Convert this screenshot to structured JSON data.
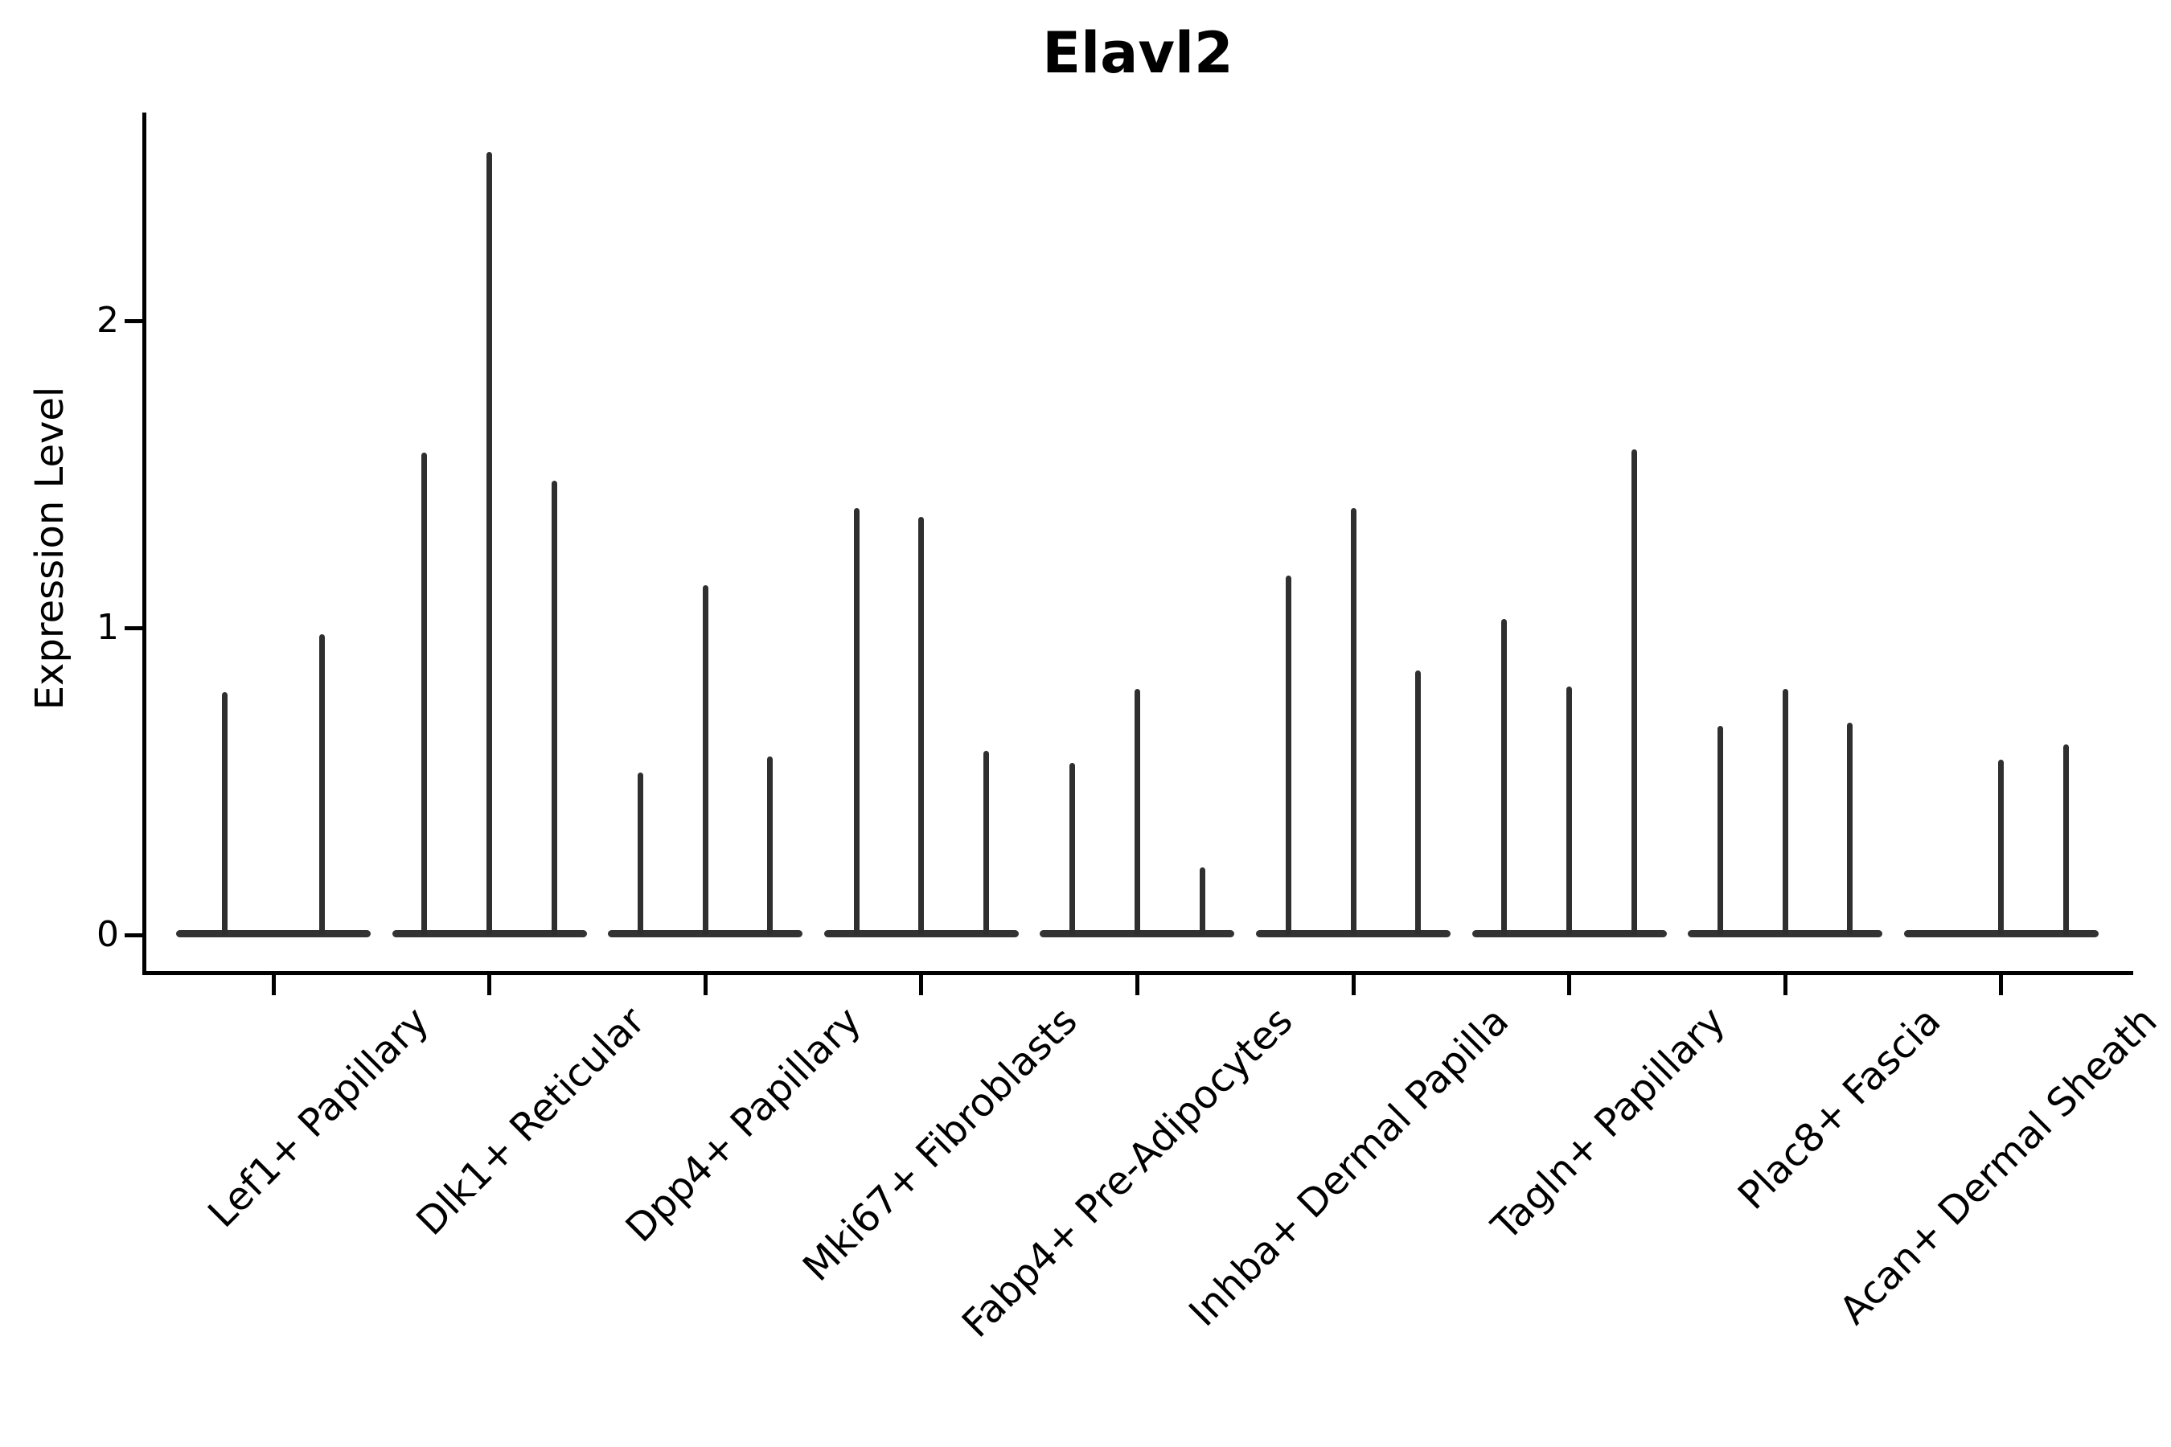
{
  "figure": {
    "title": "Elavl2",
    "y_axis_label": "Expression Level"
  },
  "chart_data": {
    "type": "violin",
    "title": "Elavl2",
    "xlabel": "",
    "ylabel": "Expression Level",
    "yticks": [
      0,
      1,
      2
    ],
    "ylim": [
      -0.12,
      2.68
    ],
    "grid": false,
    "legend": "none",
    "violin_color": "#333333",
    "axis_color": "#000000",
    "note": "Each category holds 2-3 narrow violins; values are the max expression (spike top) of each violin, 0 = flat violin with no spike",
    "categories": [
      "Lef1+ Papillary",
      "Dlk1+ Reticular",
      "Dpp4+ Papillary",
      "Mki67+ Fibroblasts",
      "Fabp4+ Pre-Adipocytes",
      "Inhba+ Dermal Papilla",
      "Tagln+ Papillary",
      "Plac8+ Fascia",
      "Acan+ Dermal Sheath"
    ],
    "series": [
      {
        "category": "Lef1+ Papillary",
        "violin_max_values": [
          0.79,
          0.98
        ]
      },
      {
        "category": "Dlk1+ Reticular",
        "violin_max_values": [
          1.57,
          2.55,
          1.48
        ]
      },
      {
        "category": "Dpp4+ Papillary",
        "violin_max_values": [
          0.53,
          1.14,
          0.58
        ]
      },
      {
        "category": "Mki67+ Fibroblasts",
        "violin_max_values": [
          1.39,
          1.36,
          0.6
        ]
      },
      {
        "category": "Fabp4+ Pre-Adipocytes",
        "violin_max_values": [
          0.56,
          0.8,
          0.22
        ]
      },
      {
        "category": "Inhba+ Dermal Papilla",
        "violin_max_values": [
          1.17,
          1.39,
          0.86
        ]
      },
      {
        "category": "Tagln+ Papillary",
        "violin_max_values": [
          1.03,
          0.81,
          1.58
        ]
      },
      {
        "category": "Plac8+ Fascia",
        "violin_max_values": [
          0.68,
          0.8,
          0.69
        ]
      },
      {
        "category": "Acan+ Dermal Sheath",
        "violin_max_values": [
          0.0,
          0.57,
          0.62
        ]
      }
    ]
  }
}
